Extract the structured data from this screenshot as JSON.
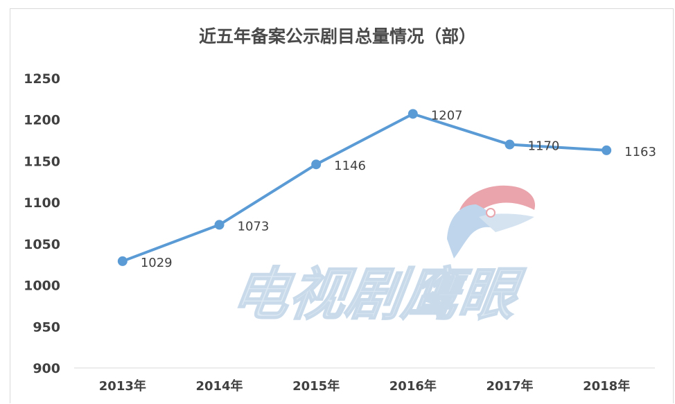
{
  "chart_data": {
    "type": "line",
    "title": "近五年备案公示剧目总量情况（部）",
    "categories": [
      "2013年",
      "2014年",
      "2015年",
      "2016年",
      "2017年",
      "2018年"
    ],
    "values": [
      1029,
      1073,
      1146,
      1207,
      1170,
      1163
    ],
    "ylim": [
      900,
      1250
    ],
    "yticks": [
      900,
      950,
      1000,
      1050,
      1100,
      1150,
      1200,
      1250
    ],
    "line_color": "#5b9bd5",
    "grid": false,
    "legend": "none"
  },
  "watermark": {
    "text": "电视剧鹰眼",
    "logo": "eagle-head-logo",
    "colors": {
      "text": "#dce8f3",
      "eagle_red": "#e8a0a8",
      "eagle_blue": "#bcd3ea"
    }
  }
}
